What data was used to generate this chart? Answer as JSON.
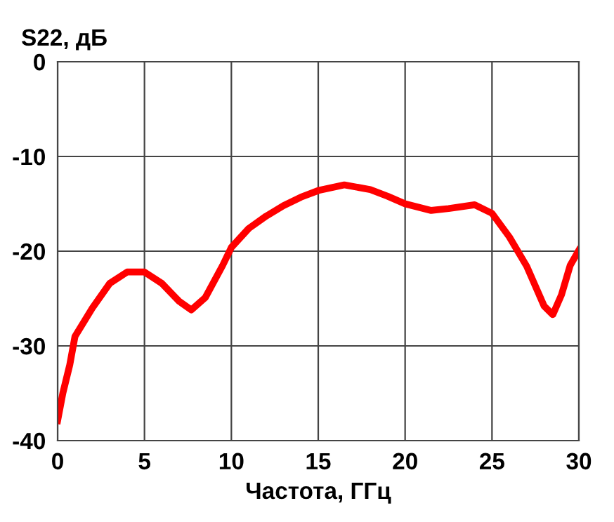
{
  "chart_data": {
    "type": "line",
    "xlabel": "Частота, ГГц",
    "ylabel": "S22, дБ",
    "x": [
      0,
      0.3,
      0.7,
      1,
      2,
      3,
      4,
      5,
      6,
      7,
      7.7,
      8.5,
      9.5,
      10,
      11,
      12,
      13,
      14,
      15,
      16.5,
      18,
      19,
      20,
      21.5,
      22.5,
      24,
      25,
      26,
      27,
      28,
      28.5,
      29,
      29.5,
      30
    ],
    "series": [
      {
        "color": "#ff0000",
        "values": [
          -37.9,
          -35,
          -32,
          -29,
          -26,
          -23.4,
          -22.2,
          -22.2,
          -23.4,
          -25.3,
          -26.2,
          -24.9,
          -21.5,
          -19.6,
          -17.6,
          -16.3,
          -15.2,
          -14.3,
          -13.6,
          -13.0,
          -13.5,
          -14.2,
          -15,
          -15.7,
          -15.5,
          -15.1,
          -16,
          -18.5,
          -21.6,
          -25.8,
          -26.7,
          -24.6,
          -21.5,
          -19.9
        ]
      }
    ],
    "xlim": [
      0,
      30
    ],
    "xticks": [
      0,
      5,
      10,
      15,
      20,
      25,
      30
    ],
    "ylim": [
      -40,
      0
    ],
    "yticks": [
      -40,
      -30,
      -20,
      -10,
      0
    ],
    "grid": true,
    "marker": "none",
    "line_style": "solid"
  }
}
